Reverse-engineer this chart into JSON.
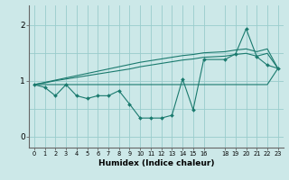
{
  "xlabel": "Humidex (Indice chaleur)",
  "background_color": "#cce8e8",
  "line_color": "#1a7a6e",
  "grid_color": "#99cccc",
  "x_values": [
    0,
    1,
    2,
    3,
    4,
    5,
    6,
    7,
    8,
    9,
    10,
    11,
    12,
    13,
    14,
    15,
    16,
    18,
    19,
    20,
    21,
    22,
    23
  ],
  "ylim": [
    -0.2,
    2.35
  ],
  "xlim": [
    -0.5,
    23.5
  ],
  "yticks": [
    0,
    1,
    2
  ],
  "line_flat": [
    0.93,
    0.93,
    0.93,
    0.93,
    0.93,
    0.93,
    0.93,
    0.93,
    0.93,
    0.93,
    0.93,
    0.93,
    0.93,
    0.93,
    0.93,
    0.93,
    0.93,
    0.93,
    0.93,
    0.93,
    0.93,
    0.93,
    1.22
  ],
  "line_upper": [
    0.93,
    0.97,
    1.01,
    1.05,
    1.09,
    1.13,
    1.17,
    1.21,
    1.25,
    1.29,
    1.33,
    1.36,
    1.39,
    1.42,
    1.45,
    1.47,
    1.5,
    1.52,
    1.55,
    1.57,
    1.52,
    1.57,
    1.22
  ],
  "line_mid": [
    0.93,
    0.96,
    1.0,
    1.03,
    1.06,
    1.09,
    1.12,
    1.15,
    1.18,
    1.21,
    1.25,
    1.28,
    1.31,
    1.34,
    1.37,
    1.39,
    1.42,
    1.44,
    1.47,
    1.49,
    1.44,
    1.49,
    1.22
  ],
  "line_data_x": [
    0,
    1,
    2,
    3,
    4,
    5,
    6,
    7,
    8,
    9,
    10,
    11,
    12,
    13,
    14,
    15,
    16,
    18,
    19,
    20,
    21,
    22,
    23
  ],
  "line_data": [
    0.93,
    0.88,
    0.73,
    0.93,
    0.73,
    0.68,
    0.73,
    0.73,
    0.82,
    0.58,
    0.33,
    0.33,
    0.33,
    0.38,
    1.03,
    0.48,
    1.38,
    1.38,
    1.48,
    1.93,
    1.43,
    1.28,
    1.22
  ],
  "xtick_labels": [
    "0",
    "1",
    "2",
    "3",
    "4",
    "5",
    "6",
    "7",
    "8",
    "9",
    "10",
    "11",
    "12",
    "13",
    "14",
    "15",
    "16",
    "18",
    "19",
    "20",
    "21",
    "22",
    "23"
  ]
}
